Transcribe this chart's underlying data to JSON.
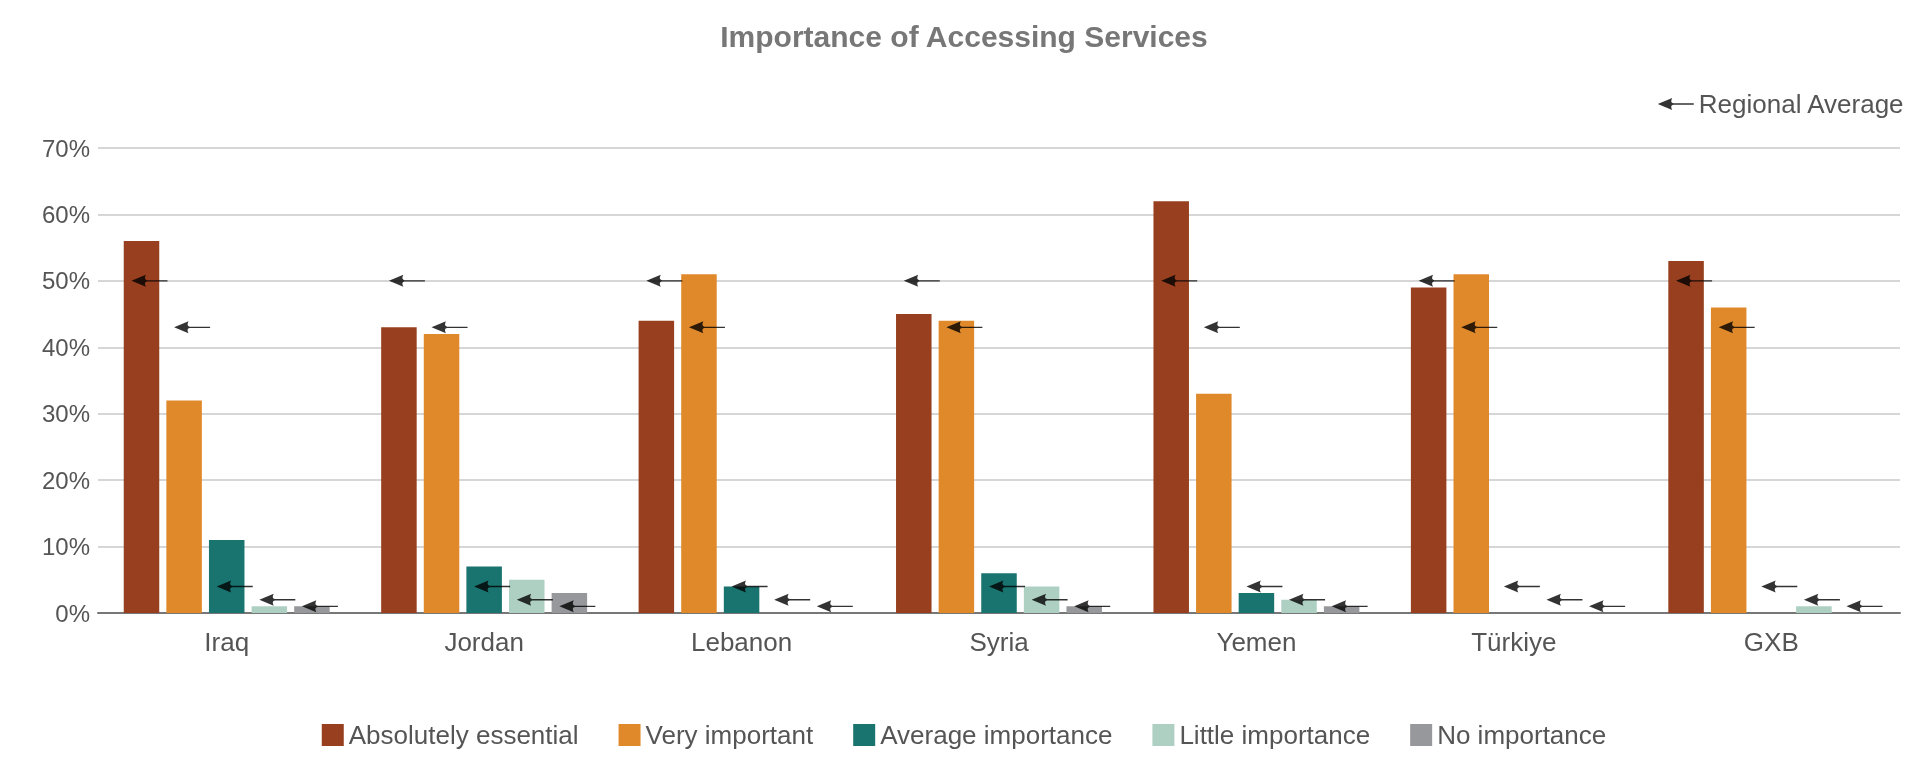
{
  "chart_data": {
    "type": "bar",
    "title": "Importance of Accessing Services",
    "categories": [
      "Iraq",
      "Jordan",
      "Lebanon",
      "Syria",
      "Yemen",
      "Türkiye",
      "GXB"
    ],
    "series": [
      {
        "name": "Absolutely essential",
        "color": "#973f1e",
        "values": [
          56,
          43,
          44,
          45,
          62,
          49,
          53
        ]
      },
      {
        "name": "Very important",
        "color": "#e0892b",
        "values": [
          32,
          42,
          51,
          44,
          33,
          51,
          46
        ]
      },
      {
        "name": "Average importance",
        "color": "#19736e",
        "values": [
          11,
          7,
          4,
          6,
          3,
          0,
          0
        ]
      },
      {
        "name": "Little importance",
        "color": "#aed0c3",
        "values": [
          1,
          5,
          0,
          4,
          2,
          0,
          1
        ]
      },
      {
        "name": "No importance",
        "color": "#97989b",
        "values": [
          1,
          3,
          0,
          1,
          1,
          0,
          0
        ]
      },
      {
        "name": "Regional Average",
        "type": "scatter",
        "color": "#000000",
        "x": [
          "Iraq",
          "Iraq",
          "Iraq",
          "Iraq",
          "Iraq",
          "Jordan",
          "Jordan",
          "Jordan",
          "Jordan",
          "Jordan",
          "Lebanon",
          "Lebanon",
          "Lebanon",
          "Lebanon",
          "Lebanon",
          "Syria",
          "Syria",
          "Syria",
          "Syria",
          "Syria",
          "Yemen",
          "Yemen",
          "Yemen",
          "Yemen",
          "Yemen",
          "Türkiye",
          "Türkiye",
          "Türkiye",
          "Türkiye",
          "Türkiye",
          "GXB",
          "GXB",
          "GXB",
          "GXB",
          "GXB"
        ],
        "values": [
          50,
          43,
          4,
          2,
          1,
          50,
          43,
          4,
          2,
          1,
          50,
          43,
          4,
          2,
          1,
          50,
          43,
          4,
          2,
          1,
          50,
          43,
          4,
          2,
          1,
          50,
          43,
          4,
          2,
          1,
          50,
          43,
          4,
          2,
          1
        ]
      }
    ],
    "ylim": [
      0,
      70
    ],
    "yticks": [
      {
        "value": 0,
        "label": "0%"
      },
      {
        "value": 10,
        "label": "10%"
      },
      {
        "value": 20,
        "label": "20%"
      },
      {
        "value": 30,
        "label": "30%"
      },
      {
        "value": 40,
        "label": "40%"
      },
      {
        "value": 50,
        "label": "50%"
      },
      {
        "value": 60,
        "label": "60%"
      },
      {
        "value": 70,
        "label": "70%"
      }
    ],
    "grid": "y",
    "legend": "bottom"
  }
}
